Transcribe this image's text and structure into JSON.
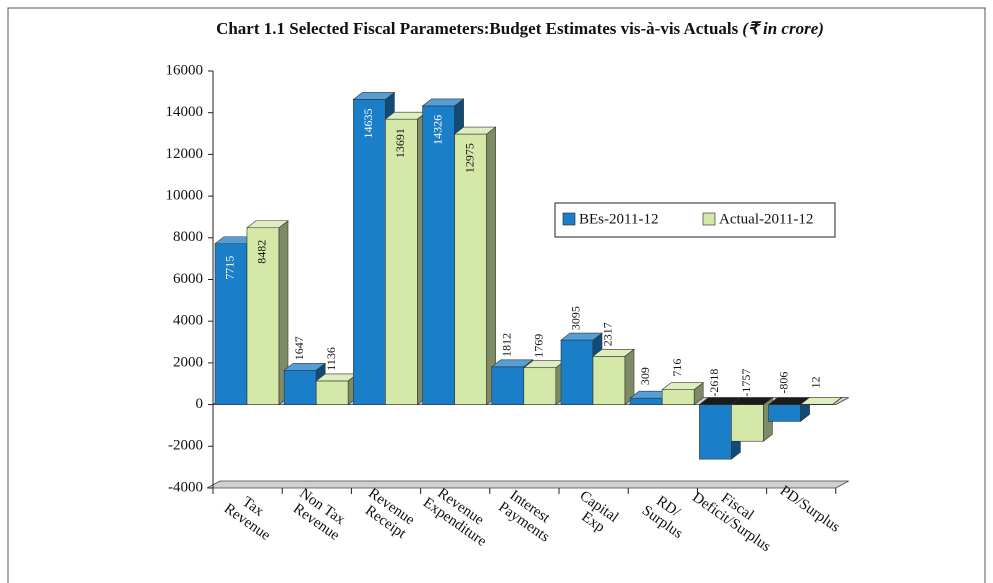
{
  "chart_data": {
    "type": "bar3d",
    "title": "Chart 1.1 Selected Fiscal Parameters:Budget Estimates vis-à-vis Actuals",
    "title_unit": "(₹ in crore)",
    "categories": [
      [
        "Tax",
        "Revenue"
      ],
      [
        "Non Tax",
        "Revenue"
      ],
      [
        "Revenue",
        "Receipt"
      ],
      [
        "Revenue",
        "Expenditure"
      ],
      [
        "Interest",
        "Payments"
      ],
      [
        "Capital",
        "Exp"
      ],
      [
        "RD/",
        "Surplus"
      ],
      [
        "Fiscal",
        "Deficit/Surplus"
      ],
      [
        "PD/Surplus"
      ]
    ],
    "series": [
      {
        "name": "BEs-2011-12",
        "color": "#1a7fc8",
        "values": [
          7715,
          1647,
          14635,
          14326,
          1812,
          3095,
          309,
          -2618,
          -806
        ]
      },
      {
        "name": "Actual-2011-12",
        "color": "#d4e8a8",
        "values": [
          8482,
          1136,
          13691,
          12975,
          1769,
          2317,
          716,
          -1757,
          12
        ]
      }
    ],
    "ylim": [
      -4000,
      16000
    ],
    "yticks": [
      -4000,
      -2000,
      0,
      2000,
      4000,
      6000,
      8000,
      10000,
      12000,
      14000,
      16000
    ]
  }
}
